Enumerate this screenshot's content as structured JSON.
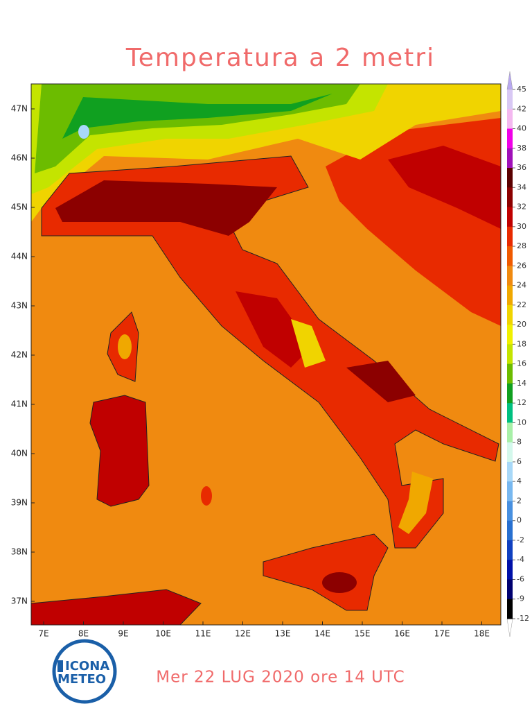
{
  "header": {
    "title": "Temperatura a 2 metri"
  },
  "map": {
    "lat_labels": [
      "47N",
      "46N",
      "45N",
      "44N",
      "43N",
      "42N",
      "41N",
      "40N",
      "39N",
      "38N",
      "37N"
    ],
    "lon_labels": [
      "7E",
      "8E",
      "9E",
      "10E",
      "11E",
      "12E",
      "13E",
      "14E",
      "15E",
      "16E",
      "17E",
      "18E"
    ]
  },
  "colorbar": {
    "ticks": [
      45,
      42,
      40,
      38,
      36,
      34,
      32,
      30,
      28,
      26,
      24,
      22,
      20,
      18,
      16,
      14,
      12,
      10,
      8,
      6,
      4,
      2,
      0,
      -2,
      -4,
      -6,
      -9,
      -12
    ],
    "colors": [
      "#d8c8f4",
      "#f4b8f0",
      "#f000e8",
      "#a010b8",
      "#5a0000",
      "#8c0000",
      "#c00000",
      "#e82a00",
      "#f05a00",
      "#f08a10",
      "#f0a800",
      "#f0d400",
      "#f0f000",
      "#c4e400",
      "#6cbc00",
      "#10a020",
      "#00c080",
      "#a8f0a8",
      "#d4f8ec",
      "#a8d8f8",
      "#78b8f0",
      "#4890e0",
      "#2870d0",
      "#1040c0",
      "#0010a8",
      "#000070",
      "#000000"
    ]
  },
  "footer": {
    "date": "Mer 22 LUG 2020 ore 14 UTC"
  },
  "logo": {
    "line1": "ICONA",
    "line2": "METEO"
  }
}
